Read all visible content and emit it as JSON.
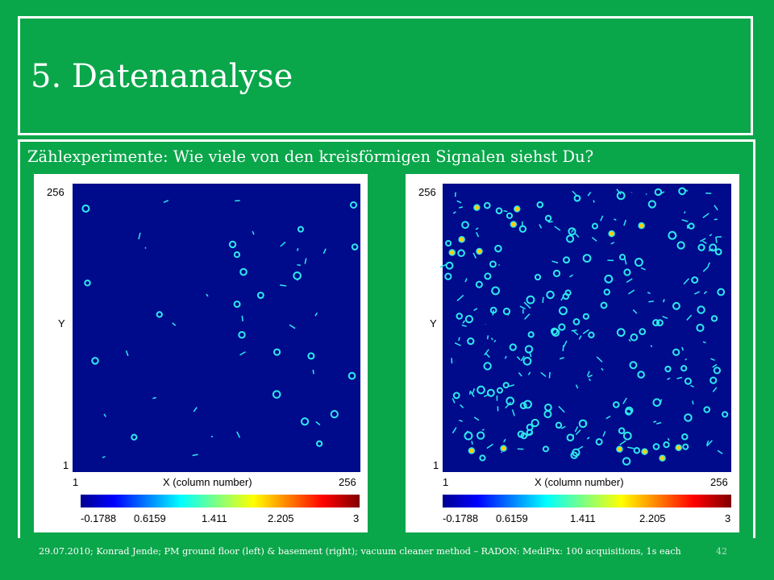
{
  "slide": {
    "title": "5. Datenanalyse",
    "subtitle": "Zählexperimente: Wie viele von den kreisförmigen Signalen siehst Du?",
    "footer": "29.07.2010; Konrad Jende; PM ground floor (left) & basement (right); vacuum cleaner method – RADON: MediPix: 100 acquisitions, 1s each",
    "page_number": "42"
  },
  "colors": {
    "slide_background": "#0aa64a",
    "plot_background": "#000b8c",
    "signal_blob": "#2ee8ee",
    "signal_core": "#ffd000"
  },
  "plots": [
    {
      "name": "left",
      "y_max_label": "256",
      "y_min_label": "1",
      "y_axis_label": "Y",
      "x_min_label": "1",
      "x_max_label": "256",
      "x_axis_label": "X (column number)",
      "colorbar_ticks": [
        "-0.1788",
        "0.6159",
        "1.411",
        "2.205",
        "3"
      ],
      "density": "sparse"
    },
    {
      "name": "right",
      "y_max_label": "256",
      "y_min_label": "1",
      "y_axis_label": "Y",
      "x_min_label": "1",
      "x_max_label": "256",
      "x_axis_label": "X (column number)",
      "colorbar_ticks": [
        "-0.1788",
        "0.6159",
        "1.411",
        "2.205",
        "3"
      ],
      "density": "dense"
    }
  ]
}
